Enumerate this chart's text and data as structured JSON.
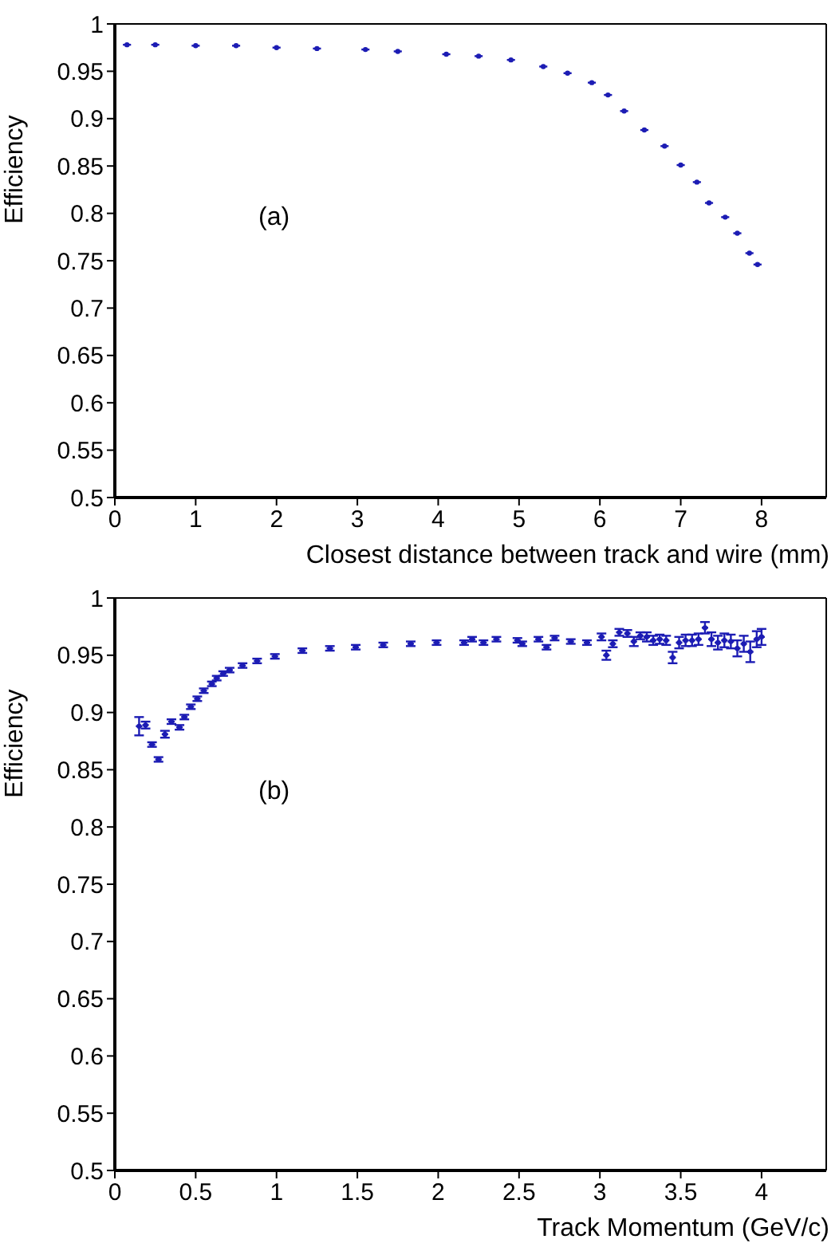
{
  "chart_data": [
    {
      "type": "scatter",
      "xlabel": "Closest distance between track and wire (mm)",
      "ylabel": "Efficiency",
      "annotations": [
        "(a)"
      ],
      "marker": "circle",
      "xlim": [
        0,
        8.8
      ],
      "ylim": [
        0.5,
        1
      ],
      "xticks": [
        0,
        1,
        2,
        3,
        4,
        5,
        6,
        7,
        8
      ],
      "yticks": [
        0.5,
        0.55,
        0.6,
        0.65,
        0.7,
        0.75,
        0.8,
        0.85,
        0.9,
        0.95,
        1
      ],
      "x": [
        0.15,
        0.5,
        1.0,
        1.5,
        2.0,
        2.5,
        3.1,
        3.5,
        4.1,
        4.5,
        4.9,
        5.3,
        5.6,
        5.9,
        6.1,
        6.3,
        6.55,
        6.8,
        7.0,
        7.2,
        7.35,
        7.55,
        7.7,
        7.85,
        7.95
      ],
      "series": [
        {
          "color": "#1c1cb4",
          "values": [
            0.978,
            0.978,
            0.977,
            0.977,
            0.975,
            0.974,
            0.973,
            0.971,
            0.968,
            0.966,
            0.962,
            0.955,
            0.948,
            0.938,
            0.925,
            0.908,
            0.888,
            0.871,
            0.851,
            0.833,
            0.811,
            0.796,
            0.779,
            0.758,
            0.746
          ],
          "xerrors": [
            0.05,
            0.05,
            0.05,
            0.05,
            0.05,
            0.05,
            0.05,
            0.05,
            0.05,
            0.05,
            0.05,
            0.05,
            0.05,
            0.05,
            0.05,
            0.05,
            0.05,
            0.05,
            0.05,
            0.05,
            0.05,
            0.05,
            0.05,
            0.05,
            0.05
          ]
        }
      ]
    },
    {
      "type": "scatter",
      "xlabel": "Track Momentum (GeV/c)",
      "ylabel": "Efficiency",
      "annotations": [
        "(b)"
      ],
      "marker": "circle",
      "xlim": [
        0,
        4.4
      ],
      "ylim": [
        0.5,
        1
      ],
      "xticks": [
        0,
        0.5,
        1,
        1.5,
        2,
        2.5,
        3,
        3.5,
        4
      ],
      "yticks": [
        0.5,
        0.55,
        0.6,
        0.65,
        0.7,
        0.75,
        0.8,
        0.85,
        0.9,
        0.95,
        1
      ],
      "x": [
        0.15,
        0.19,
        0.23,
        0.27,
        0.31,
        0.35,
        0.4,
        0.43,
        0.47,
        0.51,
        0.55,
        0.6,
        0.63,
        0.67,
        0.71,
        0.79,
        0.88,
        0.99,
        1.16,
        1.33,
        1.49,
        1.66,
        1.83,
        1.99,
        2.16,
        2.21,
        2.28,
        2.36,
        2.49,
        2.52,
        2.62,
        2.67,
        2.72,
        2.82,
        2.92,
        3.01,
        3.04,
        3.08,
        3.12,
        3.17,
        3.21,
        3.25,
        3.29,
        3.33,
        3.37,
        3.41,
        3.45,
        3.49,
        3.53,
        3.57,
        3.61,
        3.65,
        3.69,
        3.73,
        3.77,
        3.81,
        3.85,
        3.89,
        3.93,
        3.97,
        4.0
      ],
      "series": [
        {
          "color": "#1c1cb4",
          "values": [
            0.888,
            0.889,
            0.872,
            0.859,
            0.881,
            0.892,
            0.887,
            0.896,
            0.905,
            0.912,
            0.919,
            0.925,
            0.93,
            0.934,
            0.937,
            0.941,
            0.945,
            0.949,
            0.954,
            0.956,
            0.957,
            0.959,
            0.96,
            0.961,
            0.961,
            0.964,
            0.961,
            0.964,
            0.963,
            0.96,
            0.964,
            0.957,
            0.965,
            0.962,
            0.961,
            0.966,
            0.95,
            0.96,
            0.97,
            0.969,
            0.962,
            0.967,
            0.966,
            0.963,
            0.964,
            0.963,
            0.948,
            0.961,
            0.963,
            0.963,
            0.964,
            0.974,
            0.964,
            0.961,
            0.963,
            0.962,
            0.956,
            0.96,
            0.953,
            0.964,
            0.966
          ],
          "errors": [
            0.008,
            0.003,
            0.002,
            0.002,
            0.003,
            0.002,
            0.002,
            0.002,
            0.002,
            0.002,
            0.002,
            0.002,
            0.002,
            0.002,
            0.002,
            0.002,
            0.002,
            0.002,
            0.002,
            0.002,
            0.002,
            0.002,
            0.002,
            0.002,
            0.002,
            0.002,
            0.002,
            0.002,
            0.002,
            0.002,
            0.002,
            0.002,
            0.002,
            0.002,
            0.002,
            0.003,
            0.004,
            0.003,
            0.003,
            0.003,
            0.004,
            0.003,
            0.004,
            0.004,
            0.004,
            0.004,
            0.005,
            0.005,
            0.005,
            0.005,
            0.005,
            0.005,
            0.006,
            0.006,
            0.006,
            0.006,
            0.007,
            0.007,
            0.009,
            0.007,
            0.007
          ],
          "xerrors": [
            0.02,
            0.02,
            0.02,
            0.02,
            0.02,
            0.02,
            0.02,
            0.02,
            0.02,
            0.02,
            0.02,
            0.02,
            0.02,
            0.02,
            0.02,
            0.02,
            0.02,
            0.02,
            0.02,
            0.02,
            0.02,
            0.02,
            0.02,
            0.02,
            0.02,
            0.02,
            0.02,
            0.02,
            0.02,
            0.02,
            0.02,
            0.02,
            0.02,
            0.02,
            0.02,
            0.02,
            0.02,
            0.02,
            0.02,
            0.02,
            0.02,
            0.02,
            0.02,
            0.02,
            0.02,
            0.02,
            0.02,
            0.02,
            0.02,
            0.02,
            0.02,
            0.02,
            0.02,
            0.02,
            0.02,
            0.02,
            0.02,
            0.02,
            0.02,
            0.02,
            0.02
          ]
        }
      ]
    }
  ]
}
